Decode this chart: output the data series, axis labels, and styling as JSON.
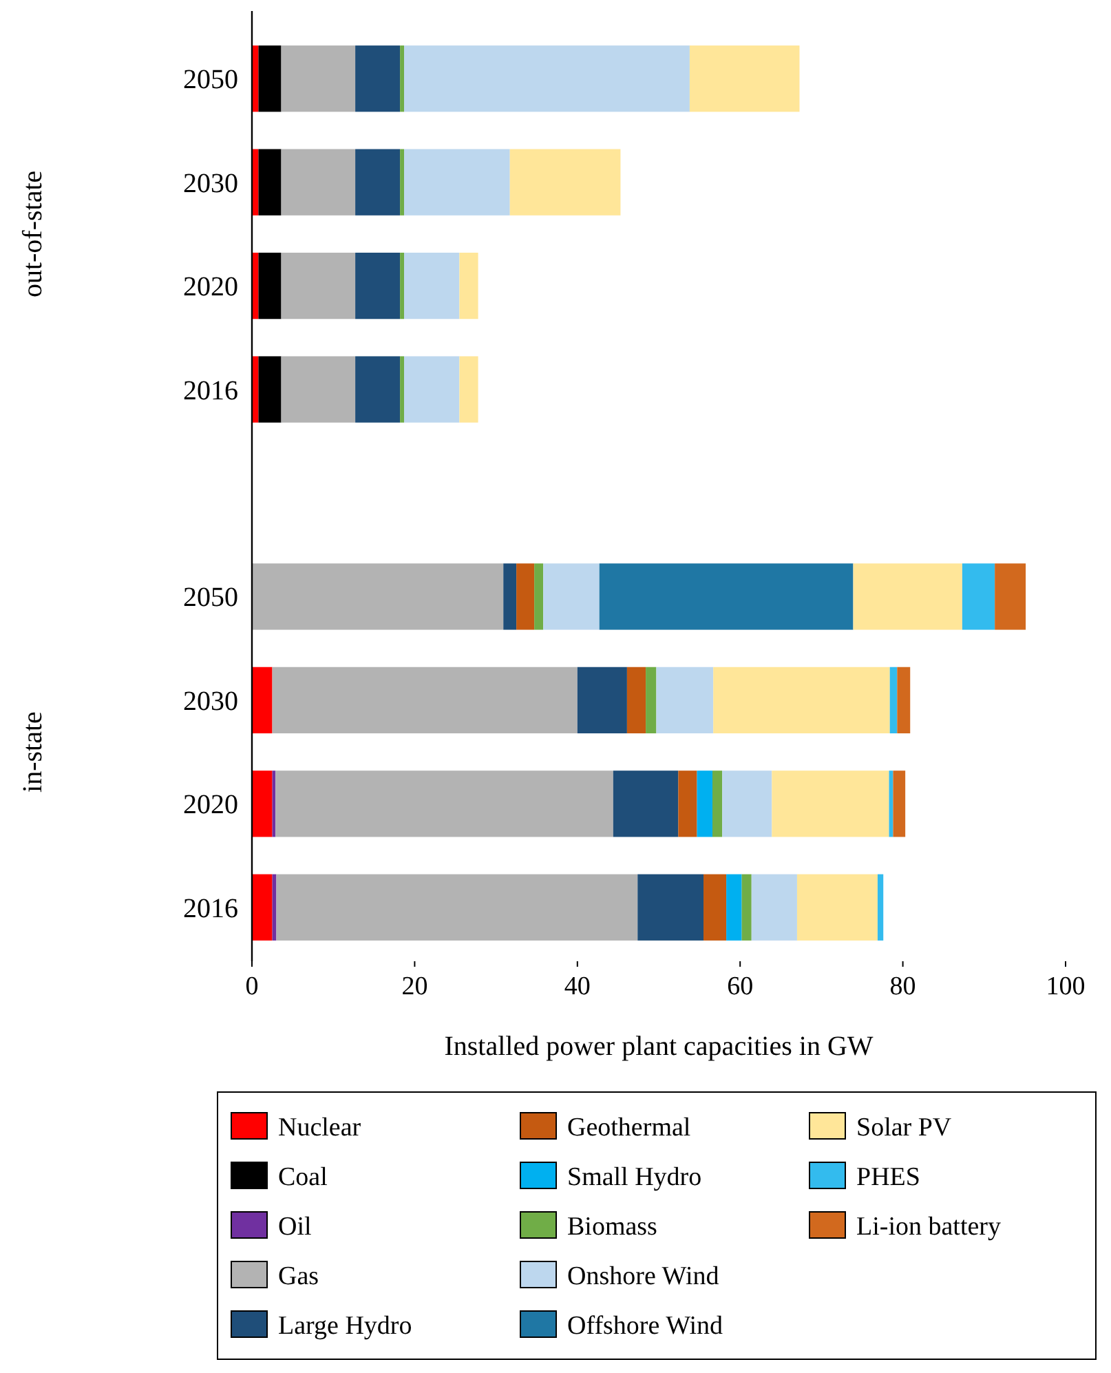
{
  "chart_data": {
    "type": "bar",
    "orientation": "horizontal",
    "stacked": true,
    "categories": [
      "2050",
      "2030",
      "2020",
      "2016",
      null,
      "2050",
      "2030",
      "2020",
      "2016"
    ],
    "xlabel": "Installed power plant capacities in GW",
    "xlim": [
      0,
      100
    ],
    "xticks": [
      0,
      20,
      40,
      60,
      80,
      100
    ],
    "annotations": [
      "out-of-state",
      "in-state"
    ],
    "legend": "bottom",
    "grid": false,
    "series": [
      {
        "name": "Nuclear",
        "color": "#ff0000",
        "values": [
          0.8,
          0.8,
          0.8,
          0.8,
          null,
          null,
          2.5,
          2.5,
          2.5
        ]
      },
      {
        "name": "Coal",
        "color": "#000000",
        "values": [
          2.8,
          2.8,
          2.8,
          2.8,
          null,
          null,
          null,
          null,
          null
        ]
      },
      {
        "name": "Oil",
        "color": "#7030a0",
        "values": [
          null,
          null,
          null,
          null,
          null,
          null,
          null,
          0.4,
          0.5
        ]
      },
      {
        "name": "Gas",
        "color": "#b3b3b3",
        "values": [
          9.1,
          9.1,
          9.1,
          9.1,
          null,
          30.9,
          37.5,
          41.5,
          44.4
        ]
      },
      {
        "name": "Large Hydro",
        "color": "#1f4e79",
        "values": [
          5.5,
          5.5,
          5.5,
          5.5,
          null,
          1.6,
          6.1,
          8.0,
          8.1
        ]
      },
      {
        "name": "Geothermal",
        "color": "#c55a11",
        "values": [
          null,
          null,
          null,
          null,
          null,
          2.2,
          2.3,
          2.3,
          2.8
        ]
      },
      {
        "name": "Small Hydro",
        "color": "#00b0f0",
        "values": [
          null,
          null,
          null,
          null,
          null,
          null,
          null,
          1.9,
          1.9
        ]
      },
      {
        "name": "Biomass",
        "color": "#70ad47",
        "values": [
          0.5,
          0.5,
          0.5,
          0.5,
          null,
          1.1,
          1.3,
          1.2,
          1.2
        ]
      },
      {
        "name": "Onshore Wind",
        "color": "#bdd7ee",
        "values": [
          35.1,
          13.0,
          6.8,
          6.8,
          null,
          6.9,
          7.0,
          6.1,
          5.6
        ]
      },
      {
        "name": "Offshore Wind",
        "color": "#1f77a4",
        "values": [
          null,
          null,
          null,
          null,
          null,
          31.2,
          null,
          null,
          null
        ]
      },
      {
        "name": "Solar PV",
        "color": "#ffe699",
        "values": [
          13.5,
          13.6,
          2.3,
          2.3,
          null,
          13.4,
          21.7,
          14.4,
          9.9
        ]
      },
      {
        "name": "PHES",
        "color": "#33bbee",
        "values": [
          null,
          null,
          null,
          null,
          null,
          4.0,
          0.9,
          0.5,
          0.7
        ]
      },
      {
        "name": "Li-ion battery",
        "color": "#d2691e",
        "values": [
          null,
          null,
          null,
          null,
          null,
          3.8,
          1.6,
          1.5,
          null
        ]
      }
    ]
  }
}
